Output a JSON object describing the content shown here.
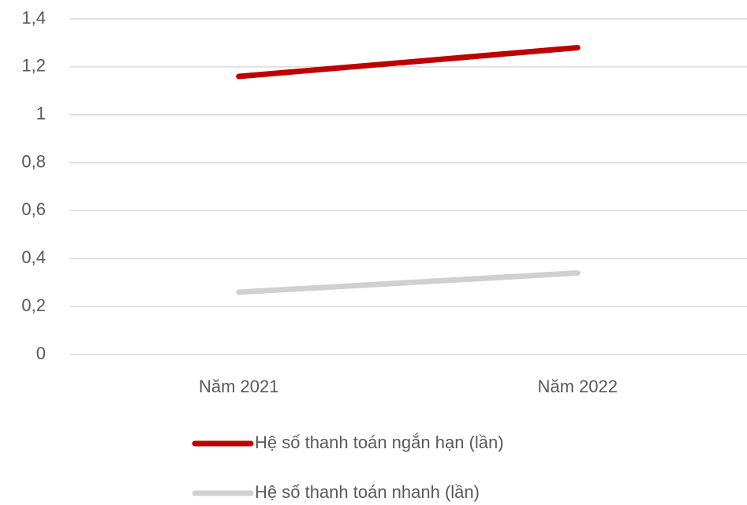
{
  "chart_data": {
    "type": "line",
    "categories": [
      "Năm 2021",
      "Năm 2022"
    ],
    "series": [
      {
        "name": "Hệ số thanh toán ngắn hạn (lần)",
        "color": "#c00000",
        "values": [
          1.16,
          1.28
        ]
      },
      {
        "name": "Hệ số thanh toán nhanh (lần)",
        "color": "#d0d0d0",
        "values": [
          0.26,
          0.34
        ]
      }
    ],
    "ylim": [
      0,
      1.4
    ],
    "yticks": [
      0,
      {
        "value": 0.2,
        "label": "0,2"
      },
      {
        "value": 0.4,
        "label": "0,4"
      },
      {
        "value": 0.6,
        "label": "0,6"
      },
      {
        "value": 0.8,
        "label": "0,8"
      },
      1,
      {
        "value": 1.2,
        "label": "1,2"
      },
      {
        "value": 1.4,
        "label": "1,4"
      }
    ],
    "grid": true,
    "legend": "bottom"
  }
}
